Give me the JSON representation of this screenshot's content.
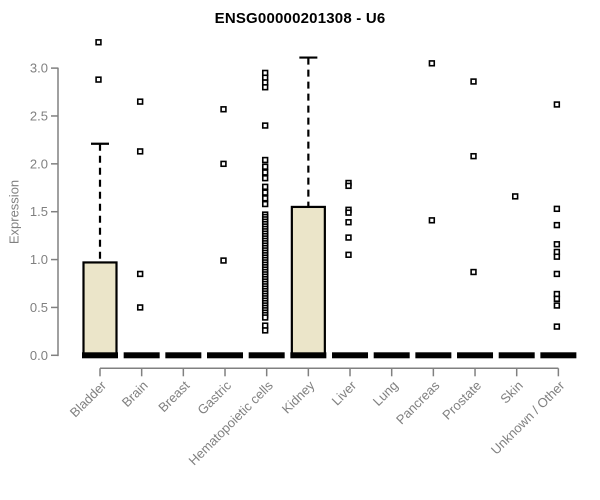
{
  "chart_data": {
    "type": "boxplot",
    "title": "ENSG00000201308 - U6",
    "ylabel": "Expression",
    "ylim": [
      0,
      3.3
    ],
    "grid": false,
    "yticks": [
      0,
      0.5,
      1,
      1.5,
      2,
      2.5,
      3
    ],
    "ytick_labels": [
      "0.0",
      "0.5",
      "1.0",
      "1.5",
      "2.0",
      "2.5",
      "3.0"
    ],
    "colors": {
      "box_fill": "#EBE5C9",
      "box_border": "#000000",
      "median": "#000000",
      "point": "#000000",
      "axis": "#808080",
      "tick_label": "#808080",
      "title": "#000000"
    },
    "categories": [
      {
        "label": "Bladder",
        "box": {
          "q1": 0,
          "median": 0,
          "q3": 0.97,
          "whisker_low": 0,
          "whisker_high": 2.21
        },
        "points": [
          3.27,
          2.88
        ]
      },
      {
        "label": "Brain",
        "box": {
          "q1": 0,
          "median": 0,
          "q3": 0,
          "whisker_low": 0,
          "whisker_high": 0
        },
        "points": [
          2.65,
          2.13,
          0.85,
          0.5
        ]
      },
      {
        "label": "Breast",
        "box": {
          "q1": 0,
          "median": 0,
          "q3": 0,
          "whisker_low": 0,
          "whisker_high": 0
        },
        "points": []
      },
      {
        "label": "Gastric",
        "box": {
          "q1": 0,
          "median": 0,
          "q3": 0,
          "whisker_low": 0,
          "whisker_high": 0
        },
        "points": [
          2.57,
          2.0,
          0.99
        ]
      },
      {
        "label": "Hematopoietic cells",
        "box": {
          "q1": 0,
          "median": 0,
          "q3": 0,
          "whisker_low": 0,
          "whisker_high": 0
        },
        "points": [
          2.95,
          2.9,
          2.85,
          2.8,
          2.4,
          2.04,
          1.97,
          1.91,
          1.85,
          1.76,
          1.7,
          1.64,
          1.58,
          1.47,
          1.445,
          1.42,
          1.395,
          1.37,
          1.345,
          1.32,
          1.295,
          1.27,
          1.245,
          1.22,
          1.195,
          1.17,
          1.145,
          1.12,
          1.095,
          1.07,
          1.045,
          1.02,
          0.995,
          0.97,
          0.945,
          0.92,
          0.895,
          0.87,
          0.845,
          0.82,
          0.795,
          0.77,
          0.745,
          0.72,
          0.695,
          0.67,
          0.645,
          0.62,
          0.595,
          0.57,
          0.545,
          0.52,
          0.495,
          0.47,
          0.445,
          0.42,
          0.395,
          0.31,
          0.26
        ]
      },
      {
        "label": "Kidney",
        "box": {
          "q1": 0,
          "median": 0,
          "q3": 1.55,
          "whisker_low": 0,
          "whisker_high": 3.11
        },
        "points": []
      },
      {
        "label": "Liver",
        "box": {
          "q1": 0,
          "median": 0,
          "q3": 0,
          "whisker_low": 0,
          "whisker_high": 0
        },
        "points": [
          1.8,
          1.77,
          1.52,
          1.49,
          1.39,
          1.23,
          1.05
        ]
      },
      {
        "label": "Lung",
        "box": {
          "q1": 0,
          "median": 0,
          "q3": 0,
          "whisker_low": 0,
          "whisker_high": 0
        },
        "points": []
      },
      {
        "label": "Pancreas",
        "box": {
          "q1": 0,
          "median": 0,
          "q3": 0,
          "whisker_low": 0,
          "whisker_high": 0
        },
        "points": [
          3.05,
          1.41
        ]
      },
      {
        "label": "Prostate",
        "box": {
          "q1": 0,
          "median": 0,
          "q3": 0,
          "whisker_low": 0,
          "whisker_high": 0
        },
        "points": [
          2.86,
          2.08,
          0.87
        ]
      },
      {
        "label": "Skin",
        "box": {
          "q1": 0,
          "median": 0,
          "q3": 0,
          "whisker_low": 0,
          "whisker_high": 0
        },
        "points": [
          1.66
        ]
      },
      {
        "label": "Unknown / Other",
        "box": {
          "q1": 0,
          "median": 0,
          "q3": 0,
          "whisker_low": 0,
          "whisker_high": 0
        },
        "points": [
          2.62,
          1.53,
          1.36,
          1.16,
          1.08,
          1.03,
          0.85,
          0.64,
          0.59,
          0.52,
          0.3
        ]
      }
    ]
  }
}
